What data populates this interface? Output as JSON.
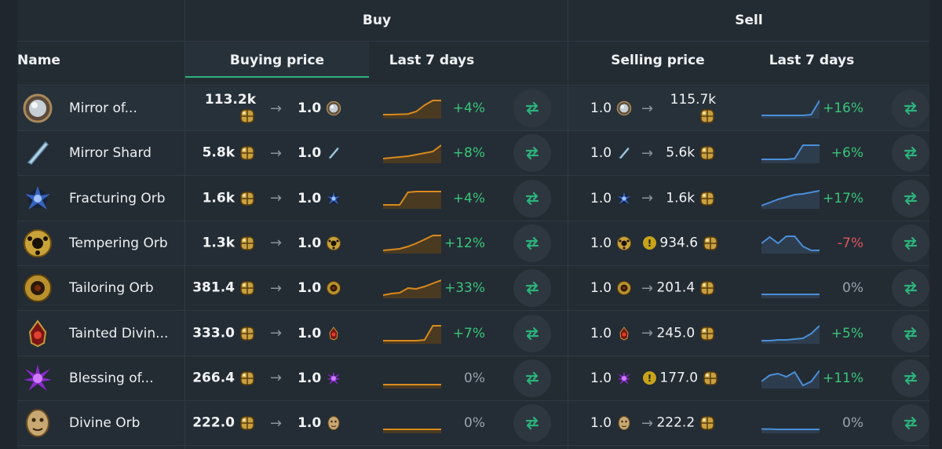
{
  "header": {
    "buy_group": "Buy",
    "sell_group": "Sell",
    "name_col": "Name",
    "buying_price_col": "Buying price",
    "buy_last7_col": "Last 7 days",
    "selling_price_col": "Selling price",
    "sell_last7_col": "Last 7 days"
  },
  "colors": {
    "buy_spark": "#d88a1c",
    "sell_spark": "#4a8fd8",
    "positive": "#39c57a",
    "negative": "#e0555d",
    "accent": "#2bb37a"
  },
  "rows": [
    {
      "name": "Mirror of...",
      "icon": "mirror-icon",
      "buy_price": "113.2k",
      "buy_qty": "1.0",
      "buy_change": "+4%",
      "sell_qty": "1.0",
      "sell_price": "115.7k",
      "sell_change": "+16%",
      "warn": false,
      "buy_trend": [
        0.1,
        0.1,
        0.12,
        0.14,
        0.3,
        0.7,
        1,
        1
      ],
      "sell_trend": [
        0.05,
        0.05,
        0.05,
        0.05,
        0.05,
        0.05,
        0.1,
        1
      ]
    },
    {
      "name": "Mirror Shard",
      "icon": "mirror-shard-icon",
      "buy_price": "5.8k",
      "buy_qty": "1.0",
      "buy_change": "+8%",
      "sell_qty": "1.0",
      "sell_price": "5.6k",
      "sell_change": "+6%",
      "warn": false,
      "buy_trend": [
        0.15,
        0.2,
        0.25,
        0.3,
        0.4,
        0.5,
        0.6,
        1
      ],
      "sell_trend": [
        0.1,
        0.1,
        0.1,
        0.1,
        0.15,
        1,
        1,
        1
      ]
    },
    {
      "name": "Fracturing Orb",
      "icon": "fracturing-orb-icon",
      "buy_price": "1.6k",
      "buy_qty": "1.0",
      "buy_change": "+4%",
      "sell_qty": "1.0",
      "sell_price": "1.6k",
      "sell_change": "+17%",
      "warn": false,
      "buy_trend": [
        0.1,
        0.1,
        0.1,
        0.9,
        0.95,
        0.95,
        0.95,
        0.95
      ],
      "sell_trend": [
        0.05,
        0.25,
        0.45,
        0.6,
        0.75,
        0.8,
        0.9,
        1
      ]
    },
    {
      "name": "Tempering Orb",
      "icon": "tempering-orb-icon",
      "buy_price": "1.3k",
      "buy_qty": "1.0",
      "buy_change": "+12%",
      "sell_qty": "1.0",
      "sell_price": "934.6",
      "sell_change": "-7%",
      "warn": true,
      "buy_trend": [
        0.05,
        0.1,
        0.15,
        0.3,
        0.5,
        0.75,
        1,
        1
      ],
      "sell_trend": [
        0.5,
        0.9,
        0.5,
        0.95,
        0.95,
        0.3,
        0.05,
        0.05
      ]
    },
    {
      "name": "Tailoring Orb",
      "icon": "tailoring-orb-icon",
      "buy_price": "381.4",
      "buy_qty": "1.0",
      "buy_change": "+33%",
      "sell_qty": "1.0",
      "sell_price": "201.4",
      "sell_change": "0%",
      "warn": false,
      "buy_trend": [
        0.05,
        0.15,
        0.2,
        0.5,
        0.45,
        0.6,
        0.8,
        1
      ],
      "sell_trend": [
        0.1,
        0.1,
        0.1,
        0.1,
        0.1,
        0.1,
        0.1,
        0.1
      ]
    },
    {
      "name": "Tainted Divin...",
      "icon": "tainted-divine-icon",
      "buy_price": "333.0",
      "buy_qty": "1.0",
      "buy_change": "+7%",
      "sell_qty": "1.0",
      "sell_price": "245.0",
      "sell_change": "+5%",
      "warn": false,
      "buy_trend": [
        0.05,
        0.05,
        0.05,
        0.05,
        0.05,
        0.1,
        1,
        1
      ],
      "sell_trend": [
        0.05,
        0.05,
        0.1,
        0.1,
        0.15,
        0.2,
        0.5,
        1
      ]
    },
    {
      "name": "Blessing of...",
      "icon": "blessing-icon",
      "buy_price": "266.4",
      "buy_qty": "1.0",
      "buy_change": "0%",
      "sell_qty": "1.0",
      "sell_price": "177.0",
      "sell_change": "+11%",
      "warn": true,
      "buy_trend": [
        0.1,
        0.1,
        0.1,
        0.1,
        0.1,
        0.1,
        0.1,
        0.1
      ],
      "sell_trend": [
        0.3,
        0.7,
        0.8,
        0.6,
        0.9,
        0.05,
        0.3,
        1
      ]
    },
    {
      "name": "Divine Orb",
      "icon": "divine-orb-icon",
      "buy_price": "222.0",
      "buy_qty": "1.0",
      "buy_change": "0%",
      "sell_qty": "1.0",
      "sell_price": "222.2",
      "sell_change": "0%",
      "warn": false,
      "buy_trend": [
        0.1,
        0.1,
        0.1,
        0.1,
        0.1,
        0.1,
        0.1,
        0.1
      ],
      "sell_trend": [
        0.12,
        0.12,
        0.1,
        0.1,
        0.1,
        0.1,
        0.1,
        0.1
      ]
    }
  ]
}
